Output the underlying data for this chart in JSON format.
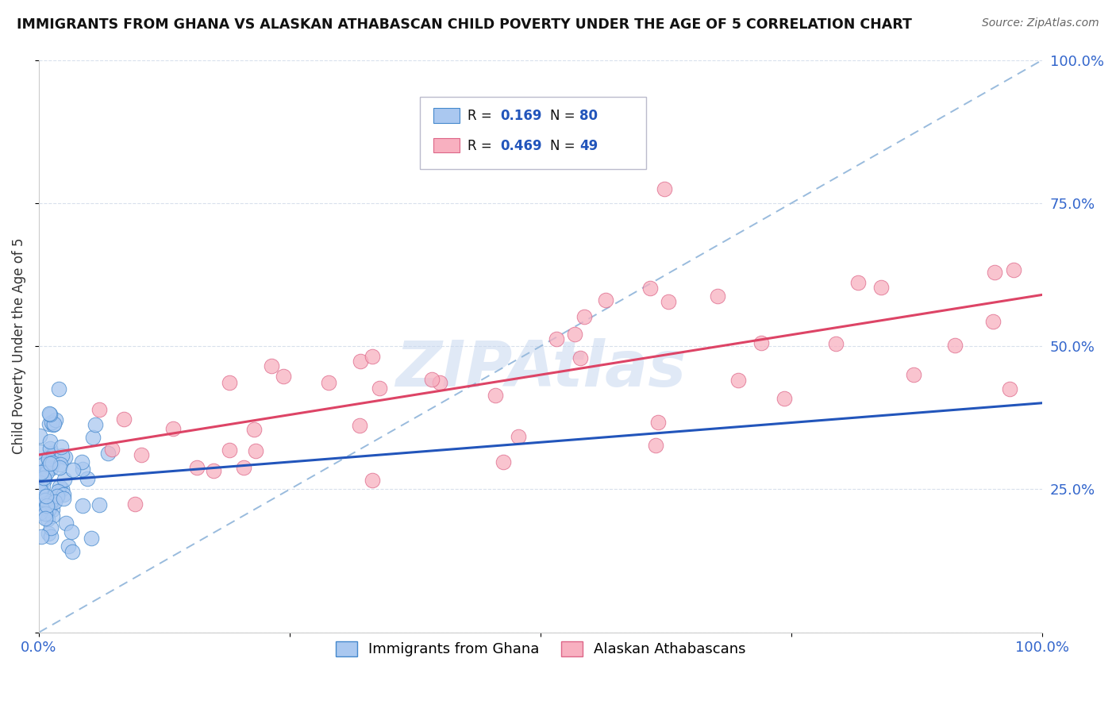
{
  "title": "IMMIGRANTS FROM GHANA VS ALASKAN ATHABASCAN CHILD POVERTY UNDER THE AGE OF 5 CORRELATION CHART",
  "source": "Source: ZipAtlas.com",
  "ylabel": "Child Poverty Under the Age of 5",
  "ghana_color": "#aac8f0",
  "ghana_edge": "#4488cc",
  "athabascan_color": "#f8b0c0",
  "athabascan_edge": "#dd6688",
  "regression_ghana_color": "#2255bb",
  "regression_athabascan_color": "#dd4466",
  "diagonal_color": "#99bbdd",
  "watermark_color": "#c8d8f0",
  "legend_ghana_label": "Immigrants from Ghana",
  "legend_athabascan_label": "Alaskan Athabascans",
  "r_n_color": "#2255bb",
  "tick_color": "#3366cc",
  "grid_color": "#d8e0ec"
}
